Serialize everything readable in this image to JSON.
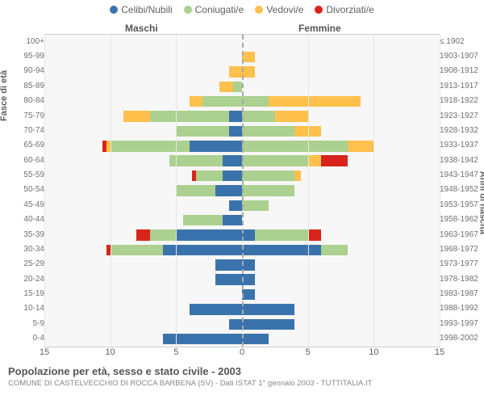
{
  "legend": [
    {
      "label": "Celibi/Nubili",
      "color": "#3a73ab"
    },
    {
      "label": "Coniugati/e",
      "color": "#abd08f"
    },
    {
      "label": "Vedovi/e",
      "color": "#ffc04c"
    },
    {
      "label": "Divorziati/e",
      "color": "#d8241b"
    }
  ],
  "header_male": "Maschi",
  "header_female": "Femmine",
  "axis_left": "Fasce di età",
  "axis_right": "Anni di nascita",
  "xmax": 15,
  "xticks": [
    15,
    10,
    5,
    0,
    5,
    10,
    15
  ],
  "title": "Popolazione per età, sesso e stato civile - 2003",
  "subtitle": "COMUNE DI CASTELVECCHIO DI ROCCA BARBENA (SV) - Dati ISTAT 1° gennaio 2003 - TUTTITALIA.IT",
  "colors": {
    "cel": "#3a73ab",
    "con": "#abd08f",
    "ved": "#ffc04c",
    "div": "#d8241b",
    "bg": "#f7f7f7",
    "grid": "#e6e6e6"
  },
  "rows": [
    {
      "age": "100+",
      "born": "≤ 1902",
      "m": {
        "cel": 0,
        "con": 0,
        "ved": 0,
        "div": 0
      },
      "f": {
        "cel": 0,
        "con": 0,
        "ved": 0,
        "div": 0
      }
    },
    {
      "age": "95-99",
      "born": "1903-1907",
      "m": {
        "cel": 0,
        "con": 0,
        "ved": 0,
        "div": 0
      },
      "f": {
        "cel": 0,
        "con": 0,
        "ved": 1,
        "div": 0
      }
    },
    {
      "age": "90-94",
      "born": "1908-1912",
      "m": {
        "cel": 0,
        "con": 0,
        "ved": 1,
        "div": 0
      },
      "f": {
        "cel": 0,
        "con": 0,
        "ved": 1,
        "div": 0
      }
    },
    {
      "age": "85-89",
      "born": "1913-1917",
      "m": {
        "cel": 0,
        "con": 0.7,
        "ved": 1,
        "div": 0
      },
      "f": {
        "cel": 0,
        "con": 0,
        "ved": 0,
        "div": 0
      }
    },
    {
      "age": "80-84",
      "born": "1918-1922",
      "m": {
        "cel": 0,
        "con": 3,
        "ved": 1,
        "div": 0
      },
      "f": {
        "cel": 0,
        "con": 2,
        "ved": 7,
        "div": 0
      }
    },
    {
      "age": "75-79",
      "born": "1923-1927",
      "m": {
        "cel": 1,
        "con": 6,
        "ved": 2,
        "div": 0
      },
      "f": {
        "cel": 0,
        "con": 2.5,
        "ved": 2.5,
        "div": 0
      }
    },
    {
      "age": "70-74",
      "born": "1928-1932",
      "m": {
        "cel": 1,
        "con": 4,
        "ved": 0,
        "div": 0
      },
      "f": {
        "cel": 0,
        "con": 4,
        "ved": 2,
        "div": 0
      }
    },
    {
      "age": "65-69",
      "born": "1933-1937",
      "m": {
        "cel": 4,
        "con": 6,
        "ved": 0.3,
        "div": 0.3
      },
      "f": {
        "cel": 0,
        "con": 8,
        "ved": 2,
        "div": 0
      }
    },
    {
      "age": "60-64",
      "born": "1938-1942",
      "m": {
        "cel": 1.5,
        "con": 4,
        "ved": 0,
        "div": 0
      },
      "f": {
        "cel": 0,
        "con": 5,
        "ved": 1,
        "div": 2
      }
    },
    {
      "age": "55-59",
      "born": "1943-1947",
      "m": {
        "cel": 1.5,
        "con": 2,
        "ved": 0,
        "div": 0.3
      },
      "f": {
        "cel": 0,
        "con": 4,
        "ved": 0.5,
        "div": 0
      }
    },
    {
      "age": "50-54",
      "born": "1948-1952",
      "m": {
        "cel": 2,
        "con": 3,
        "ved": 0,
        "div": 0
      },
      "f": {
        "cel": 0,
        "con": 4,
        "ved": 0,
        "div": 0
      }
    },
    {
      "age": "45-49",
      "born": "1953-1957",
      "m": {
        "cel": 1,
        "con": 0,
        "ved": 0,
        "div": 0
      },
      "f": {
        "cel": 0,
        "con": 2,
        "ved": 0,
        "div": 0
      }
    },
    {
      "age": "40-44",
      "born": "1958-1962",
      "m": {
        "cel": 1.5,
        "con": 3,
        "ved": 0,
        "div": 0
      },
      "f": {
        "cel": 0,
        "con": 0,
        "ved": 0,
        "div": 0
      }
    },
    {
      "age": "35-39",
      "born": "1963-1967",
      "m": {
        "cel": 5,
        "con": 2,
        "ved": 0,
        "div": 1
      },
      "f": {
        "cel": 1,
        "con": 4,
        "ved": 0,
        "div": 1
      }
    },
    {
      "age": "30-34",
      "born": "1968-1972",
      "m": {
        "cel": 6,
        "con": 4,
        "ved": 0,
        "div": 0.3
      },
      "f": {
        "cel": 6,
        "con": 2,
        "ved": 0,
        "div": 0
      }
    },
    {
      "age": "25-29",
      "born": "1973-1977",
      "m": {
        "cel": 2,
        "con": 0,
        "ved": 0,
        "div": 0
      },
      "f": {
        "cel": 1,
        "con": 0,
        "ved": 0,
        "div": 0
      }
    },
    {
      "age": "20-24",
      "born": "1978-1982",
      "m": {
        "cel": 2,
        "con": 0,
        "ved": 0,
        "div": 0
      },
      "f": {
        "cel": 1,
        "con": 0,
        "ved": 0,
        "div": 0
      }
    },
    {
      "age": "15-19",
      "born": "1983-1987",
      "m": {
        "cel": 0,
        "con": 0,
        "ved": 0,
        "div": 0
      },
      "f": {
        "cel": 1,
        "con": 0,
        "ved": 0,
        "div": 0
      }
    },
    {
      "age": "10-14",
      "born": "1988-1992",
      "m": {
        "cel": 4,
        "con": 0,
        "ved": 0,
        "div": 0
      },
      "f": {
        "cel": 4,
        "con": 0,
        "ved": 0,
        "div": 0
      }
    },
    {
      "age": "5-9",
      "born": "1993-1997",
      "m": {
        "cel": 1,
        "con": 0,
        "ved": 0,
        "div": 0
      },
      "f": {
        "cel": 4,
        "con": 0,
        "ved": 0,
        "div": 0
      }
    },
    {
      "age": "0-4",
      "born": "1998-2002",
      "m": {
        "cel": 6,
        "con": 0,
        "ved": 0,
        "div": 0
      },
      "f": {
        "cel": 2,
        "con": 0,
        "ved": 0,
        "div": 0
      }
    }
  ]
}
